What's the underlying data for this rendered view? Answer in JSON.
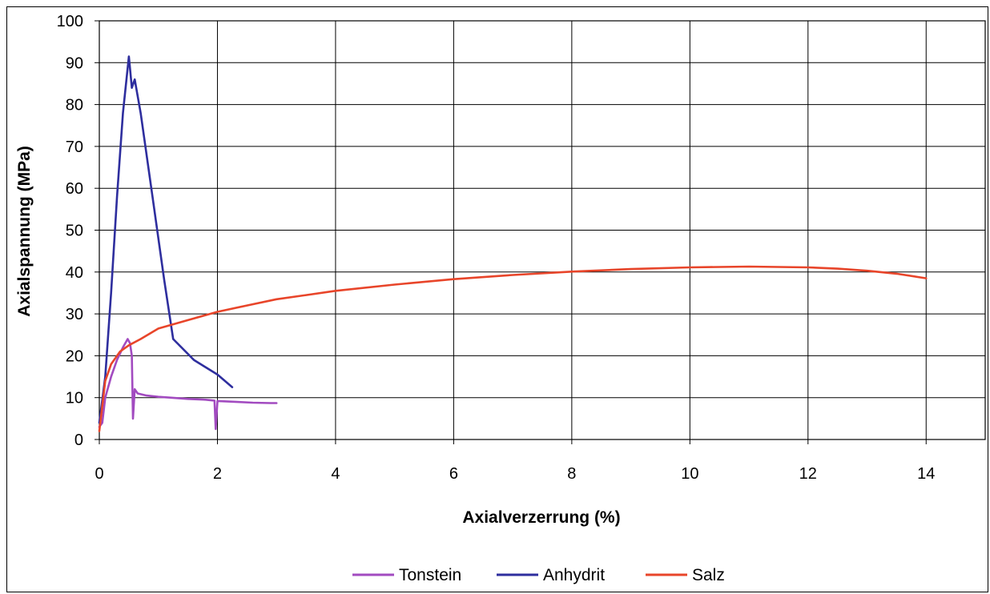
{
  "chart_data": {
    "type": "line",
    "xlabel": "Axialverzerrung (%)",
    "ylabel": "Axialspannung (MPa)",
    "xlim": [
      0,
      15
    ],
    "ylim": [
      0,
      100
    ],
    "x_ticks": [
      0,
      2,
      4,
      6,
      8,
      10,
      12,
      14
    ],
    "y_ticks": [
      0,
      10,
      20,
      30,
      40,
      50,
      60,
      70,
      80,
      90,
      100
    ],
    "grid": true,
    "legend_position": "bottom",
    "series": [
      {
        "name": "Tonstein",
        "color": "#A24BC0",
        "points": [
          [
            0,
            3
          ],
          [
            0.05,
            4
          ],
          [
            0.1,
            10
          ],
          [
            0.2,
            15
          ],
          [
            0.3,
            19
          ],
          [
            0.4,
            22
          ],
          [
            0.48,
            24
          ],
          [
            0.52,
            23
          ],
          [
            0.55,
            20
          ],
          [
            0.57,
            5
          ],
          [
            0.6,
            12
          ],
          [
            0.65,
            11
          ],
          [
            0.8,
            10.5
          ],
          [
            1.0,
            10.2
          ],
          [
            1.2,
            10
          ],
          [
            1.5,
            9.7
          ],
          [
            1.8,
            9.5
          ],
          [
            1.95,
            9.3
          ],
          [
            1.97,
            2.5
          ],
          [
            2.0,
            9.2
          ],
          [
            2.3,
            9
          ],
          [
            2.6,
            8.8
          ],
          [
            2.9,
            8.7
          ],
          [
            3.0,
            8.7
          ]
        ]
      },
      {
        "name": "Anhydrit",
        "color": "#2E2E9E",
        "points": [
          [
            0,
            4
          ],
          [
            0.1,
            15
          ],
          [
            0.2,
            35
          ],
          [
            0.3,
            58
          ],
          [
            0.4,
            78
          ],
          [
            0.5,
            91.5
          ],
          [
            0.55,
            84
          ],
          [
            0.6,
            86
          ],
          [
            0.7,
            78
          ],
          [
            0.9,
            58
          ],
          [
            1.1,
            38
          ],
          [
            1.25,
            24
          ],
          [
            1.6,
            19
          ],
          [
            2.0,
            15.5
          ],
          [
            2.25,
            12.5
          ]
        ]
      },
      {
        "name": "Salz",
        "color": "#E8452A",
        "points": [
          [
            0,
            2
          ],
          [
            0.05,
            8
          ],
          [
            0.1,
            14
          ],
          [
            0.2,
            18
          ],
          [
            0.35,
            21
          ],
          [
            0.5,
            22.5
          ],
          [
            0.7,
            24
          ],
          [
            1.0,
            26.5
          ],
          [
            1.5,
            28.5
          ],
          [
            2.0,
            30.5
          ],
          [
            2.5,
            32
          ],
          [
            3.0,
            33.5
          ],
          [
            3.5,
            34.5
          ],
          [
            4.0,
            35.5
          ],
          [
            5.0,
            37
          ],
          [
            6.0,
            38.3
          ],
          [
            7.0,
            39.3
          ],
          [
            8.0,
            40.1
          ],
          [
            9.0,
            40.7
          ],
          [
            10.0,
            41.1
          ],
          [
            11.0,
            41.3
          ],
          [
            12.0,
            41.1
          ],
          [
            12.5,
            40.8
          ],
          [
            13.0,
            40.3
          ],
          [
            13.5,
            39.6
          ],
          [
            14.0,
            38.5
          ]
        ]
      }
    ]
  }
}
